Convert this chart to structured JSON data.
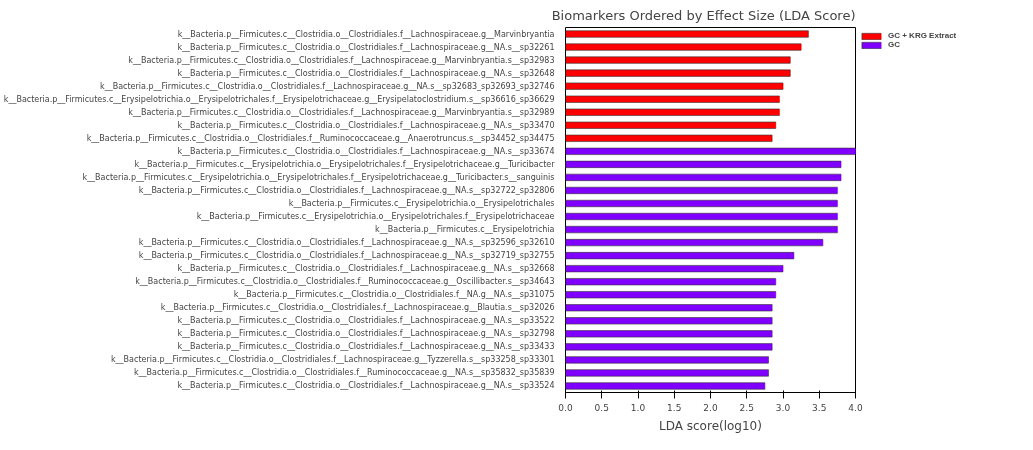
{
  "chart_data": {
    "type": "bar",
    "orientation": "horizontal",
    "title": "Biomarkers Ordered by Effect Size (LDA Score)",
    "xlabel": "LDA score(log10)",
    "categories": [
      "k__Bacteria.p__Firmicutes.c__Clostridia.o__Clostridiales.f__Lachnospiraceae.g__Marvinbryantia",
      "k__Bacteria.p__Firmicutes.c__Clostridia.o__Clostridiales.f__Lachnospiraceae.g__NA.s__sp32261",
      "k__Bacteria.p__Firmicutes.c__Clostridia.o__Clostridiales.f__Lachnospiraceae.g__Marvinbryantia.s__sp32983",
      "k__Bacteria.p__Firmicutes.c__Clostridia.o__Clostridiales.f__Lachnospiraceae.g__NA.s__sp32648",
      "k__Bacteria.p__Firmicutes.c__Clostridia.o__Clostridiales.f__Lachnospiraceae.g__NA.s__sp32683_sp32693_sp32746",
      "k__Bacteria.p__Firmicutes.c__Erysipelotrichia.o__Erysipelotrichales.f__Erysipelotrichaceae.g__Erysipelatoclostridium.s__sp36616_sp36629",
      "k__Bacteria.p__Firmicutes.c__Clostridia.o__Clostridiales.f__Lachnospiraceae.g__Marvinbryantia.s__sp32989",
      "k__Bacteria.p__Firmicutes.c__Clostridia.o__Clostridiales.f__Lachnospiraceae.g__NA.s__sp33470",
      "k__Bacteria.p__Firmicutes.c__Clostridia.o__Clostridiales.f__Ruminococcaceae.g__Anaerotruncus.s__sp34452_sp34475",
      "k__Bacteria.p__Firmicutes.c__Clostridia.o__Clostridiales.f__Lachnospiraceae.g__NA.s__sp33674",
      "k__Bacteria.p__Firmicutes.c__Erysipelotrichia.o__Erysipelotrichales.f__Erysipelotrichaceae.g__Turicibacter",
      "k__Bacteria.p__Firmicutes.c__Erysipelotrichia.o__Erysipelotrichales.f__Erysipelotrichaceae.g__Turicibacter.s__sanguinis",
      "k__Bacteria.p__Firmicutes.c__Clostridia.o__Clostridiales.f__Lachnospiraceae.g__NA.s__sp32722_sp32806",
      "k__Bacteria.p__Firmicutes.c__Erysipelotrichia.o__Erysipelotrichales",
      "k__Bacteria.p__Firmicutes.c__Erysipelotrichia.o__Erysipelotrichales.f__Erysipelotrichaceae",
      "k__Bacteria.p__Firmicutes.c__Erysipelotrichia",
      "k__Bacteria.p__Firmicutes.c__Clostridia.o__Clostridiales.f__Lachnospiraceae.g__NA.s__sp32596_sp32610",
      "k__Bacteria.p__Firmicutes.c__Clostridia.o__Clostridiales.f__Lachnospiraceae.g__NA.s__sp32719_sp32755",
      "k__Bacteria.p__Firmicutes.c__Clostridia.o__Clostridiales.f__Lachnospiraceae.g__NA.s__sp32668",
      "k__Bacteria.p__Firmicutes.c__Clostridia.o__Clostridiales.f__Ruminococcaceae.g__Oscillibacter.s__sp34643",
      "k__Bacteria.p__Firmicutes.c__Clostridia.o__Clostridiales.f__NA.g__NA.s__sp31075",
      "k__Bacteria.p__Firmicutes.c__Clostridia.o__Clostridiales.f__Lachnospiraceae.g__Blautia.s__sp32026",
      "k__Bacteria.p__Firmicutes.c__Clostridia.o__Clostridiales.f__Lachnospiraceae.g__NA.s__sp33522",
      "k__Bacteria.p__Firmicutes.c__Clostridia.o__Clostridiales.f__Lachnospiraceae.g__NA.s__sp32798",
      "k__Bacteria.p__Firmicutes.c__Clostridia.o__Clostridiales.f__Lachnospiraceae.g__NA.s__sp33433",
      "k__Bacteria.p__Firmicutes.c__Clostridia.o__Clostridiales.f__Lachnospiraceae.g__Tyzzerella.s__sp33258_sp33301",
      "k__Bacteria.p__Firmicutes.c__Clostridia.o__Clostridiales.f__Ruminococcaceae.g__NA.s__sp35832_sp35839",
      "k__Bacteria.p__Firmicutes.c__Clostridia.o__Clostridiales.f__Lachnospiraceae.g__NA.s__sp33524"
    ],
    "series": [
      {
        "name": "GC + KRG Extract",
        "color": "#ff0000",
        "values": [
          3.35,
          3.25,
          3.1,
          3.1,
          3.0,
          2.95,
          2.95,
          2.9,
          2.85,
          null,
          null,
          null,
          null,
          null,
          null,
          null,
          null,
          null,
          null,
          null,
          null,
          null,
          null,
          null,
          null,
          null,
          null,
          null
        ]
      },
      {
        "name": "GC",
        "color": "#7f00ff",
        "values": [
          null,
          null,
          null,
          null,
          null,
          null,
          null,
          null,
          null,
          4.0,
          3.8,
          3.8,
          3.75,
          3.75,
          3.75,
          3.75,
          3.55,
          3.15,
          3.0,
          2.9,
          2.9,
          2.85,
          2.85,
          2.85,
          2.85,
          2.8,
          2.8,
          2.75
        ]
      }
    ],
    "xlim": [
      0,
      4.0
    ],
    "xticks": [
      {
        "value": 0,
        "label": "0.0"
      },
      {
        "value": 0.5,
        "label": "0.5"
      },
      {
        "value": 1.0,
        "label": "1.0"
      },
      {
        "value": 1.5,
        "label": "1.5"
      },
      {
        "value": 2.0,
        "label": "2.0"
      },
      {
        "value": 2.5,
        "label": "2.5"
      },
      {
        "value": 3.0,
        "label": "3.0"
      },
      {
        "value": 3.5,
        "label": "3.5"
      },
      {
        "value": 4.0,
        "label": "4.0"
      }
    ],
    "grid": false,
    "legend": "top right"
  }
}
